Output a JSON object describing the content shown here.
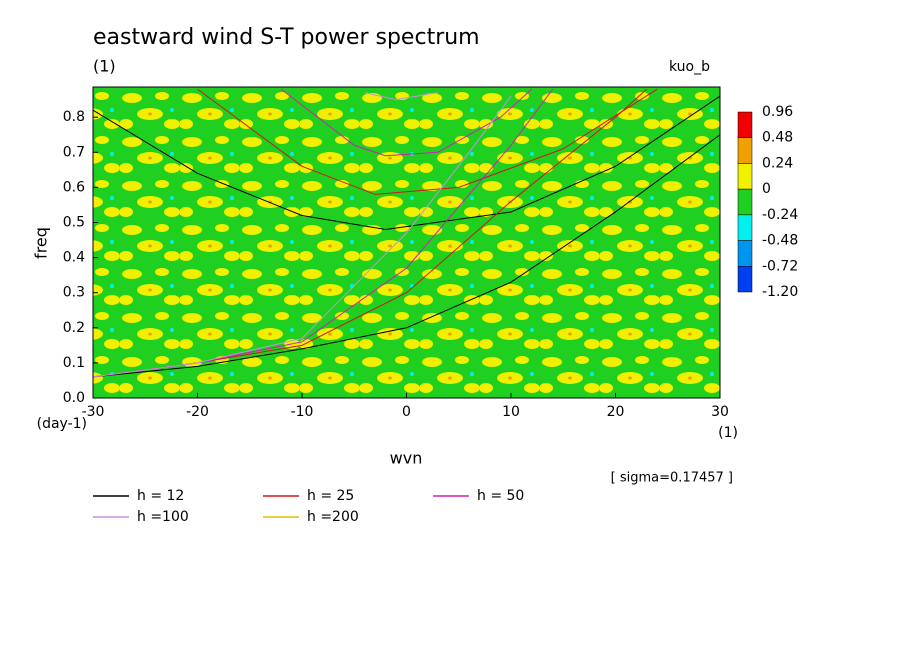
{
  "chart_data": {
    "type": "contour-dispersion",
    "title": "eastward wind S-T power spectrum",
    "subtitle": "(1)",
    "source": "kuo_b",
    "x_label": "wvn",
    "x_unit": "(1)",
    "y_label": "freq",
    "y_unit": "(day-1)",
    "annotation": "[ sigma=0.17457 ]",
    "xlim": [
      -30,
      30
    ],
    "xticks": [
      -30,
      -20,
      -10,
      0,
      10,
      20,
      30
    ],
    "ylim": [
      0,
      0.886
    ],
    "yticks": [
      {
        "value": 0,
        "label": "0.0"
      },
      0.1,
      0.2,
      0.3,
      0.4,
      0.5,
      0.6,
      0.7,
      0.8
    ],
    "colorbar": {
      "levels": [
        0.96,
        0.48,
        0.24,
        0,
        -0.24,
        -0.48,
        -0.72,
        {
          "value": -1.2,
          "label": "-1.20"
        }
      ],
      "colors": [
        "#f00000",
        "#f0a000",
        "#f0f000",
        "#20d020",
        "#00f0f0",
        "#0096f0",
        "#0040f0"
      ]
    },
    "series": [
      {
        "name": "h = 12",
        "color": "#000000",
        "curves": [
          {
            "x": [
              -30,
              -20,
              -10,
              -2,
              10,
              20,
              30
            ],
            "values": [
              0.82,
              0.64,
              0.52,
              0.48,
              0.53,
              0.66,
              0.86
            ]
          },
          {
            "x": [
              -30,
              -20,
              -10,
              0,
              10,
              20,
              30
            ],
            "values": [
              0.06,
              0.09,
              0.14,
              0.2,
              0.33,
              0.53,
              0.75
            ]
          }
        ]
      },
      {
        "name": "h = 25",
        "color": "#d01818",
        "curves": [
          {
            "x": [
              -20,
              -10,
              -3,
              5,
              15,
              24
            ],
            "values": [
              0.88,
              0.66,
              0.58,
              0.6,
              0.71,
              0.88
            ]
          },
          {
            "x": [
              -30,
              -20,
              -10,
              0,
              10,
              20,
              23
            ],
            "values": [
              0.06,
              0.1,
              0.15,
              0.3,
              0.56,
              0.8,
              0.88
            ]
          }
        ]
      },
      {
        "name": "h = 50",
        "color": "#d020b0",
        "curves": [
          {
            "x": [
              -12,
              -5,
              -2,
              3,
              9,
              12
            ],
            "values": [
              0.88,
              0.72,
              0.69,
              0.7,
              0.8,
              0.88
            ]
          },
          {
            "x": [
              -30,
              -20,
              -10,
              0,
              10,
              14
            ],
            "values": [
              0.06,
              0.1,
              0.16,
              0.37,
              0.72,
              0.88
            ]
          }
        ]
      },
      {
        "name": "h =100",
        "color": "#c890e0",
        "curves": [
          {
            "x": [
              -4,
              -1,
              3
            ],
            "values": [
              0.87,
              0.85,
              0.87
            ]
          },
          {
            "x": [
              -30,
              -20,
              -10,
              0,
              6,
              10
            ],
            "values": [
              0.06,
              0.1,
              0.17,
              0.47,
              0.7,
              0.86
            ]
          }
        ]
      },
      {
        "name": "h =200",
        "color": "#e0c000",
        "curves": []
      }
    ]
  }
}
